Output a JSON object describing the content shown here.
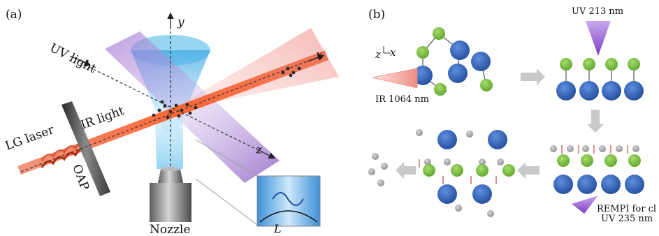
{
  "panel_a": {
    "panel_label": "(a)",
    "axis_y": "y",
    "axis_x": "x",
    "axis_z": "z",
    "uv_light": "UV light",
    "ir_light": "IR light",
    "lg_laser": "LG laser",
    "oap": "OAP",
    "nozzle": "Nozzle",
    "inset_length": "L"
  },
  "panel_b": {
    "panel_label": "(b)",
    "axis_z": "z",
    "axis_x": "x",
    "uv_213": "UV 213 nm",
    "ir_1064": "IR 1064 nm",
    "rempi": "REMPI for cl",
    "uv_235": "UV 235 nm"
  },
  "colors": {
    "laser_red": "#e8431a",
    "uv_purple": "#8f5fc2",
    "cone_blue": "#6cc3ea",
    "h_green": "#7cc242",
    "cl_blue": "#2f5fb3",
    "arrow_gray": "#c9c9c9"
  }
}
